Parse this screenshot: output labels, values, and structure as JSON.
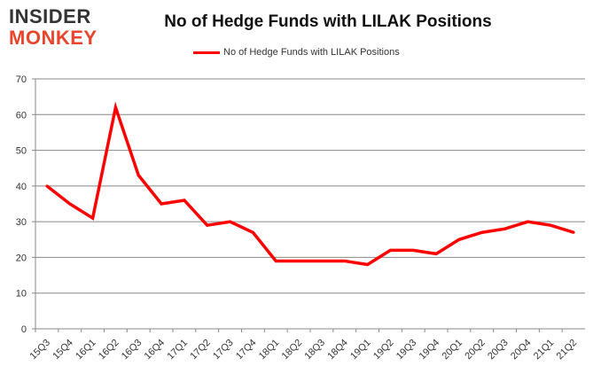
{
  "logo": {
    "line1": "INSIDER",
    "line2": "MONKEY"
  },
  "chart_data": {
    "type": "line",
    "title": "No of Hedge Funds with LILAK Positions",
    "legend": "top",
    "grid": true,
    "ylim": [
      0,
      70
    ],
    "yticks": [
      0,
      10,
      20,
      30,
      40,
      50,
      60,
      70
    ],
    "categories": [
      "15Q3",
      "15Q4",
      "16Q1",
      "16Q2",
      "16Q3",
      "16Q4",
      "17Q1",
      "17Q2",
      "17Q3",
      "17Q4",
      "18Q1",
      "18Q2",
      "18Q3",
      "18Q4",
      "19Q1",
      "19Q2",
      "19Q3",
      "19Q4",
      "20Q1",
      "20Q2",
      "20Q3",
      "20Q4",
      "21Q1",
      "21Q2"
    ],
    "series": [
      {
        "name": "No of Hedge Funds with LILAK Positions",
        "color": "#ff0000",
        "values": [
          40,
          35,
          31,
          62,
          43,
          35,
          36,
          29,
          30,
          27,
          19,
          19,
          19,
          19,
          18,
          22,
          22,
          21,
          25,
          27,
          28,
          30,
          29,
          27
        ]
      }
    ]
  }
}
